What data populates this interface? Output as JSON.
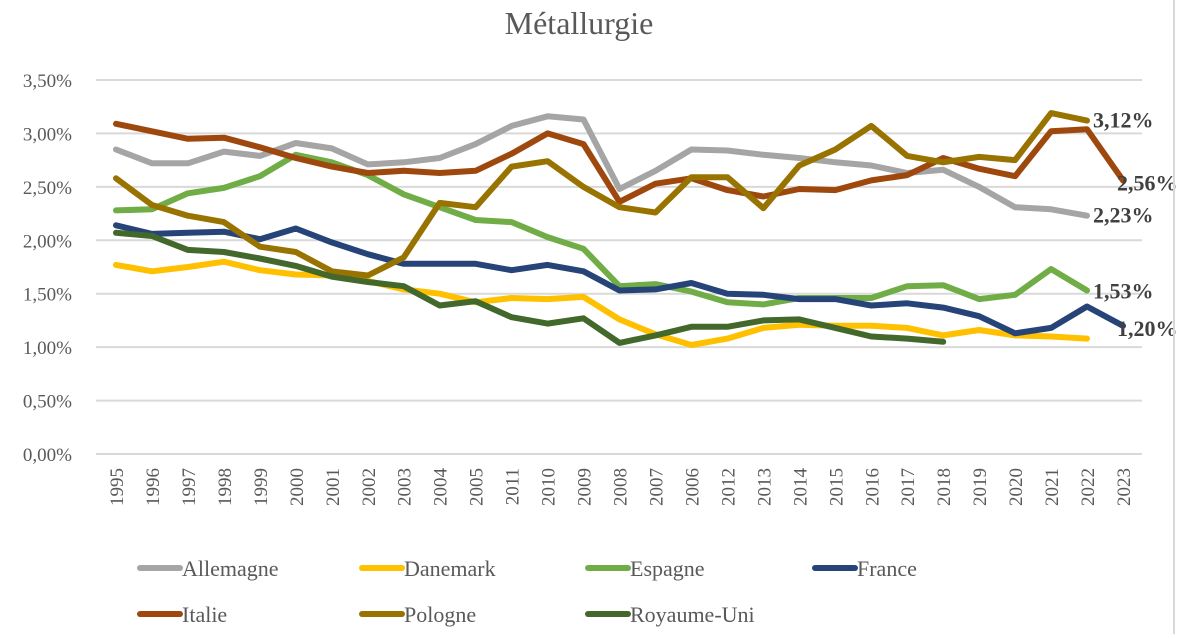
{
  "chart_data": {
    "type": "line",
    "title": "Métallurgie",
    "xlabel": "",
    "ylabel": "",
    "ylim": [
      0,
      3.5
    ],
    "y_ticks": [
      "0,00%",
      "0,50%",
      "1,00%",
      "1,50%",
      "2,00%",
      "2,50%",
      "3,00%",
      "3,50%"
    ],
    "y_tick_values": [
      0,
      0.5,
      1.0,
      1.5,
      2.0,
      2.5,
      3.0,
      3.5
    ],
    "grid": true,
    "legend_position": "bottom",
    "categories": [
      "1995",
      "1996",
      "1997",
      "1998",
      "1999",
      "2000",
      "2001",
      "2002",
      "2003",
      "2004",
      "2005",
      "2011",
      "2010",
      "2009",
      "2008",
      "2007",
      "2006",
      "2012",
      "2013",
      "2014",
      "2015",
      "2016",
      "2017",
      "2018",
      "2019",
      "2020",
      "2021",
      "2022",
      "2023"
    ],
    "series": [
      {
        "name": "Allemagne",
        "color": "#A5A5A5",
        "values": [
          2.85,
          2.72,
          2.72,
          2.83,
          2.79,
          2.91,
          2.86,
          2.71,
          2.73,
          2.77,
          2.9,
          3.07,
          3.16,
          3.13,
          2.48,
          2.65,
          2.85,
          2.84,
          2.8,
          2.77,
          2.73,
          2.7,
          2.63,
          2.66,
          2.5,
          2.31,
          2.29,
          2.23,
          null
        ],
        "end_label": "2,23%"
      },
      {
        "name": "Danemark",
        "color": "#FFC000",
        "values": [
          1.77,
          1.71,
          1.75,
          1.8,
          1.72,
          1.68,
          1.67,
          1.62,
          1.54,
          1.5,
          1.42,
          1.46,
          1.45,
          1.47,
          1.26,
          1.12,
          1.02,
          1.08,
          1.18,
          1.21,
          1.2,
          1.2,
          1.18,
          1.11,
          1.16,
          1.11,
          1.1,
          1.08,
          null
        ],
        "end_label": null
      },
      {
        "name": "Espagne",
        "color": "#70AD47",
        "values": [
          2.28,
          2.29,
          2.44,
          2.49,
          2.6,
          2.8,
          2.73,
          2.61,
          2.43,
          2.31,
          2.19,
          2.17,
          2.03,
          1.92,
          1.57,
          1.59,
          1.52,
          1.42,
          1.4,
          1.46,
          1.46,
          1.46,
          1.57,
          1.58,
          1.45,
          1.49,
          1.73,
          1.53,
          null
        ],
        "end_label": "1,53%"
      },
      {
        "name": "France",
        "color": "#264478",
        "values": [
          2.14,
          2.06,
          2.07,
          2.08,
          2.01,
          2.11,
          1.98,
          1.87,
          1.78,
          1.78,
          1.78,
          1.72,
          1.77,
          1.71,
          1.53,
          1.54,
          1.6,
          1.5,
          1.49,
          1.45,
          1.45,
          1.39,
          1.41,
          1.37,
          1.29,
          1.13,
          1.18,
          1.38,
          1.2
        ],
        "end_label": "1,20%"
      },
      {
        "name": "Italie",
        "color": "#9E480E",
        "values": [
          3.09,
          3.02,
          2.95,
          2.96,
          2.87,
          2.77,
          2.69,
          2.63,
          2.65,
          2.63,
          2.65,
          2.81,
          3.0,
          2.9,
          2.36,
          2.53,
          2.58,
          2.47,
          2.41,
          2.48,
          2.47,
          2.56,
          2.61,
          2.77,
          2.67,
          2.6,
          3.02,
          3.04,
          2.56
        ],
        "end_label": "2,56%"
      },
      {
        "name": "Pologne",
        "color": "#997300",
        "values": [
          2.58,
          2.33,
          2.23,
          2.17,
          1.94,
          1.89,
          1.71,
          1.67,
          1.84,
          2.35,
          2.31,
          2.69,
          2.74,
          2.5,
          2.31,
          2.26,
          2.59,
          2.59,
          2.3,
          2.7,
          2.85,
          3.07,
          2.79,
          2.73,
          2.78,
          2.75,
          3.19,
          3.12,
          null
        ],
        "end_label": "3,12%"
      },
      {
        "name": "Royaume-Uni",
        "color": "#43682B",
        "values": [
          2.07,
          2.04,
          1.91,
          1.89,
          1.83,
          1.76,
          1.66,
          1.61,
          1.57,
          1.39,
          1.43,
          1.28,
          1.22,
          1.27,
          1.04,
          1.11,
          1.19,
          1.19,
          1.25,
          1.26,
          1.18,
          1.1,
          1.08,
          1.05,
          null,
          null,
          null,
          null,
          null
        ],
        "end_label": null
      }
    ]
  }
}
